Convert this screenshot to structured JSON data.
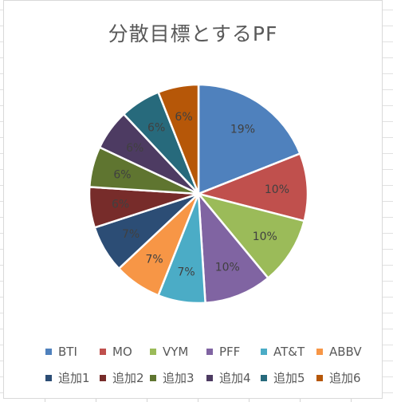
{
  "chart_data": {
    "type": "pie",
    "title": "分散目標とするPF",
    "categories": [
      "BTI",
      "MO",
      "VYM",
      "PFF",
      "AT&T",
      "ABBV",
      "追加1",
      "追加2",
      "追加3",
      "追加4",
      "追加5",
      "追加6"
    ],
    "values": [
      19,
      10,
      10,
      10,
      7,
      7,
      7,
      6,
      6,
      6,
      6,
      6
    ],
    "data_labels": [
      "19%",
      "10%",
      "10%",
      "10%",
      "7%",
      "7%",
      "7%",
      "6%",
      "6%",
      "6%",
      "6%",
      "6%"
    ],
    "colors": [
      "#4f81bd",
      "#c0504d",
      "#9bbb59",
      "#8064a2",
      "#4bacc6",
      "#f79646",
      "#2c4d75",
      "#772c2a",
      "#5f7530",
      "#4d3b62",
      "#276a7c",
      "#b65708"
    ],
    "label_colors": [
      "#404040",
      "#404040",
      "#404040",
      "#404040",
      "#404040",
      "#404040",
      "#404040",
      "#404040",
      "#404040",
      "#404040",
      "#404040",
      "#404040"
    ],
    "legend_position": "bottom"
  }
}
